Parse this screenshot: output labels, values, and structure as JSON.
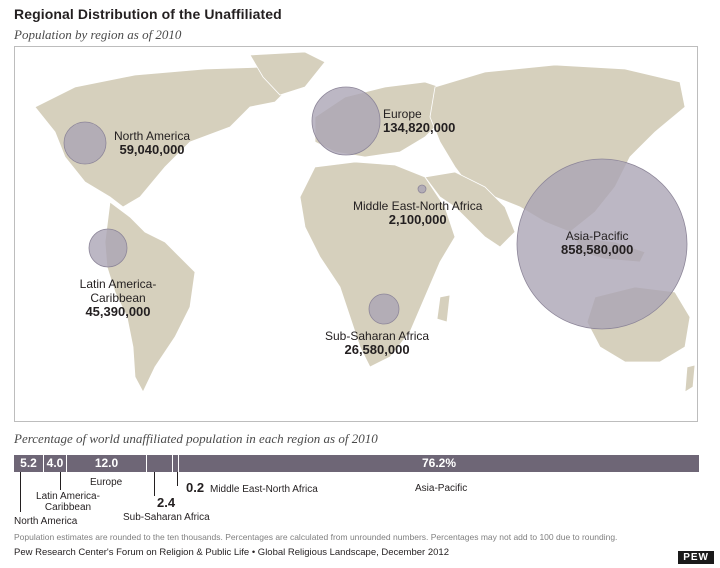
{
  "title": "Regional Distribution of the Unaffiliated",
  "subtitle": "Population by region as of 2010",
  "pct_title": "Percentage of world unaffiliated population in each region as of 2010",
  "footnote": "Population estimates are rounded to the ten thousands. Percentages are calculated from unrounded numbers. Percentages may not add to 100 due to rounding.",
  "source": "Pew Research Center's Forum on Religion & Public Life • Global Religious Landscape, December 2012",
  "logo": "PEW",
  "colors": {
    "land": "#d6d0bd",
    "bubble": "#a9a3b3",
    "bar": "#6e6676"
  },
  "chart_data": [
    {
      "type": "scatter",
      "title": "Regional Distribution of the Unaffiliated",
      "subtitle": "Population by region as of 2010",
      "series": [
        {
          "name": "North America",
          "value": 59040000,
          "label": "59,040,000"
        },
        {
          "name": "Europe",
          "value": 134820000,
          "label": "134,820,000"
        },
        {
          "name": "Middle East-North Africa",
          "value": 2100000,
          "label": "2,100,000"
        },
        {
          "name": "Asia-Pacific",
          "value": 858580000,
          "label": "858,580,000"
        },
        {
          "name": "Latin America-Caribbean",
          "value": 45390000,
          "label": "45,390,000"
        },
        {
          "name": "Sub-Saharan Africa",
          "value": 26580000,
          "label": "26,580,000"
        }
      ]
    },
    {
      "type": "bar",
      "title": "Percentage of world unaffiliated population in each region as of 2010",
      "categories": [
        "North America",
        "Latin America-Caribbean",
        "Europe",
        "Sub-Saharan Africa",
        "Middle East-North Africa",
        "Asia-Pacific"
      ],
      "values": [
        5.2,
        4.0,
        12.0,
        2.4,
        0.2,
        76.2
      ],
      "value_labels": [
        "5.2",
        "4.0",
        "12.0",
        "2.4",
        "0.2",
        "76.2%"
      ]
    }
  ]
}
